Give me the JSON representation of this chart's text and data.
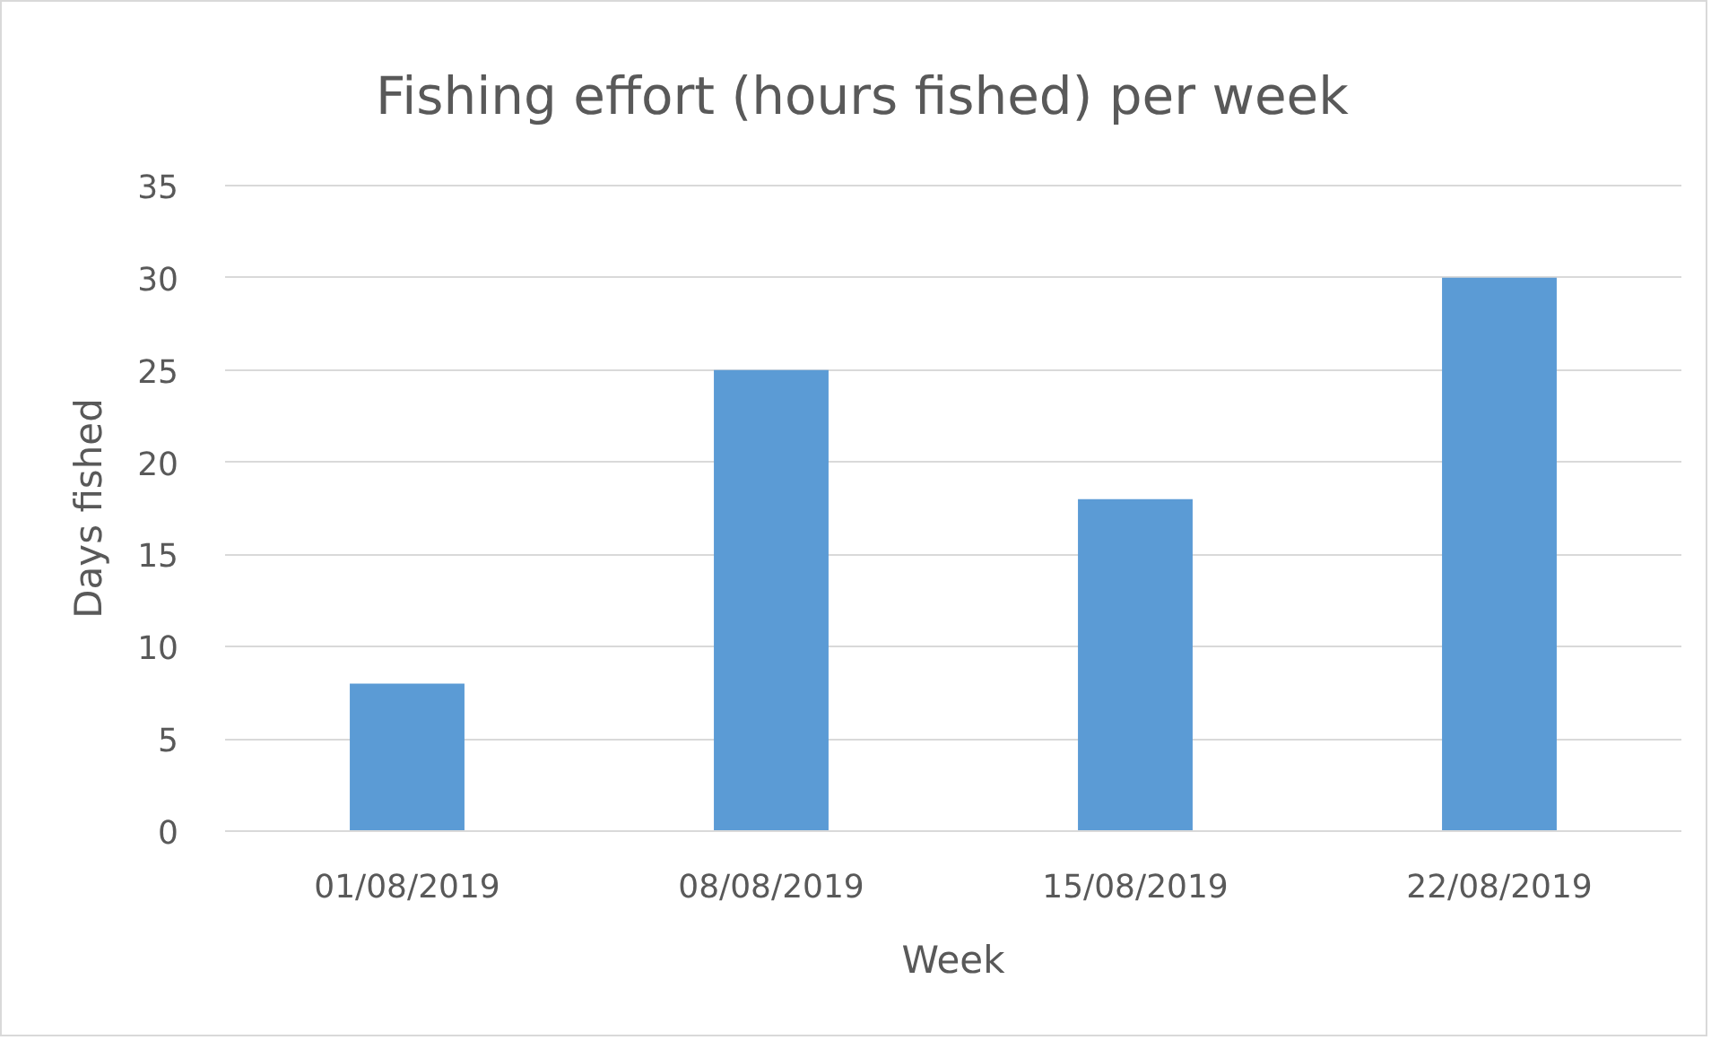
{
  "chart_data": {
    "type": "bar",
    "title": "Fishing effort (hours fished) per week",
    "xlabel": "Week",
    "ylabel": "Days fished",
    "categories": [
      "01/08/2019",
      "08/08/2019",
      "15/08/2019",
      "22/08/2019"
    ],
    "values": [
      8,
      25,
      18,
      30
    ],
    "color": "#5b9bd5",
    "ylim": [
      0,
      35
    ],
    "yticks": [
      0,
      5,
      10,
      15,
      20,
      25,
      30,
      35
    ],
    "grid": "y"
  }
}
